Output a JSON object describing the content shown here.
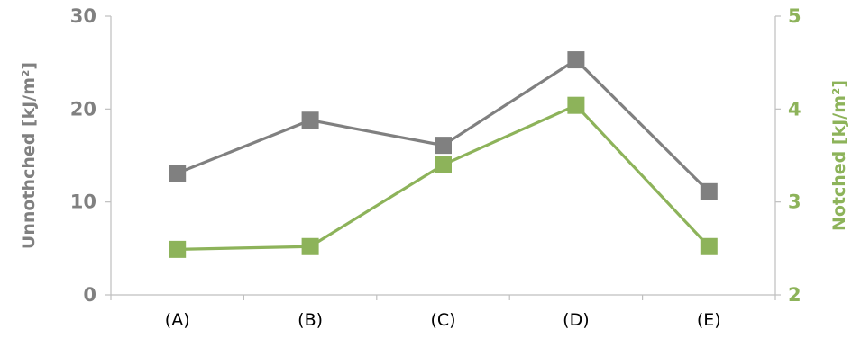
{
  "chart_data": {
    "type": "line",
    "categories": [
      "(A)",
      "(B)",
      "(C)",
      "(D)",
      "(E)"
    ],
    "series": [
      {
        "values": [
          13.1,
          18.8,
          16.1,
          25.3,
          11.1
        ],
        "color": "#808080",
        "axis": "left"
      },
      {
        "values": [
          2.49,
          2.52,
          3.4,
          4.04,
          2.52
        ],
        "color": "#8db35a",
        "axis": "right"
      }
    ],
    "y_left": {
      "label": "Unnothched [kJ/m²]",
      "ylim": [
        0,
        30
      ],
      "ticks": [
        "0",
        "10",
        "20",
        "30"
      ],
      "color": "#808080"
    },
    "y_right": {
      "label": "Notched [kJ/m²]",
      "ylim": [
        2,
        5
      ],
      "ticks": [
        "2",
        "3",
        "4",
        "5"
      ],
      "color": "#8db35a"
    },
    "grid": false,
    "legend": "none"
  }
}
